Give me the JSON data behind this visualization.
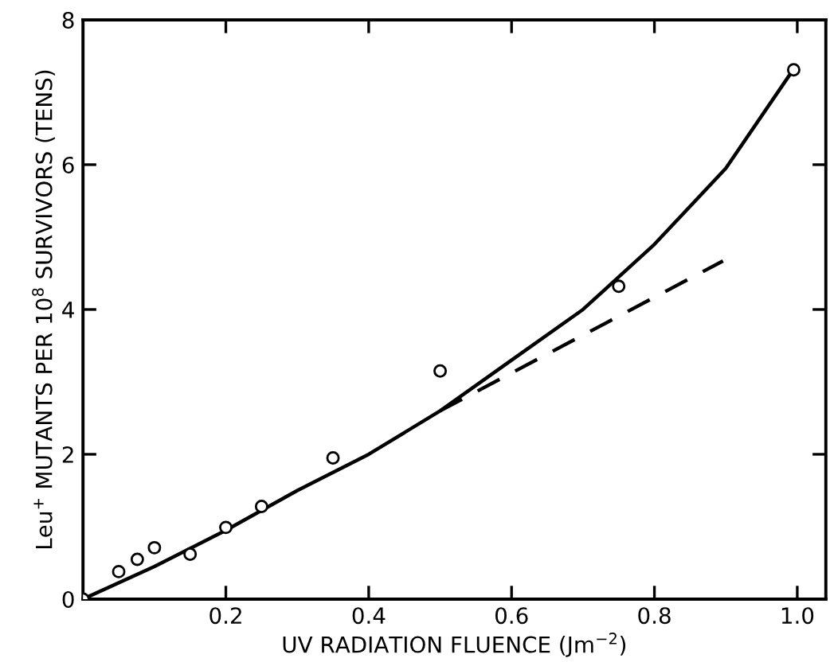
{
  "chart_data": {
    "type": "scatter",
    "xlabel": "UV RADIATION FLUENCE (Jm$^{−2}$)",
    "ylabel": "Leu$^{+}$ MUTANTS PER 10$^{8}$ SURVIVORS (TENS)",
    "xlim": [
      0,
      1.04
    ],
    "ylim": [
      0,
      8
    ],
    "xticks": [
      0.2,
      0.4,
      0.6,
      0.8,
      {
        "value": 1.0,
        "label": "1.0"
      }
    ],
    "yticks": [
      0,
      2,
      4,
      6,
      8
    ],
    "grid": false,
    "legend": false,
    "series": [
      {
        "color": "#000000",
        "marker": "circle",
        "x": [
          0,
          0.05,
          0.076,
          0.1,
          0.15,
          0.2,
          0.25,
          0.35,
          0.5,
          0.75,
          0.995
        ],
        "values": [
          0,
          0.38,
          0.55,
          0.71,
          0.62,
          0.99,
          1.28,
          1.95,
          3.15,
          4.32,
          7.31
        ]
      },
      {
        "type": "line",
        "color": "#000000",
        "line_style": "solid",
        "x": [
          0,
          0.1,
          0.2,
          0.3,
          0.4,
          0.5,
          0.6,
          0.7,
          0.8,
          0.9,
          0.99
        ],
        "values": [
          0,
          0.45,
          0.95,
          1.5,
          2.0,
          2.6,
          3.3,
          4.0,
          4.9,
          5.95,
          7.25
        ]
      },
      {
        "type": "line",
        "color": "#000000",
        "line_style": "dashed",
        "x": [
          0.5,
          0.896
        ],
        "values": [
          2.6,
          4.67
        ]
      }
    ]
  }
}
